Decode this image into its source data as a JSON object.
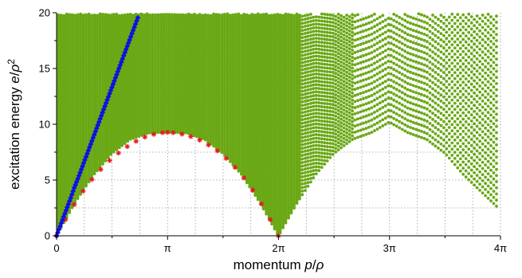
{
  "chart_data": {
    "type": "scatter",
    "title": "",
    "xlabel": {
      "prefix": "momentum ",
      "var": "p",
      "sep": "/",
      "den": "ρ"
    },
    "ylabel": {
      "prefix": "excitation energy ",
      "var": "e",
      "sep": "/",
      "den": "ρ",
      "sup": "2"
    },
    "xlim": [
      0,
      12.566
    ],
    "ylim": [
      0,
      20
    ],
    "grid": true,
    "legend": "none",
    "x_ticks": [
      {
        "value": 0,
        "label": "0"
      },
      {
        "value": 3.1416,
        "label": "π"
      },
      {
        "value": 6.2832,
        "label": "2π"
      },
      {
        "value": 9.4248,
        "label": "3π"
      },
      {
        "value": 12.566,
        "label": "4π"
      }
    ],
    "y_ticks": [
      {
        "value": 0,
        "label": "0"
      },
      {
        "value": 5,
        "label": "5"
      },
      {
        "value": 10,
        "label": "10"
      },
      {
        "value": 15,
        "label": "15"
      },
      {
        "value": 20,
        "label": "20"
      }
    ],
    "colors": {
      "continuum": "#6aa815",
      "lower_edge": "#e21d1d",
      "linear_branch": "#1010e0"
    },
    "series": [
      {
        "marker": "dot",
        "color": "#6aa815",
        "description_values": "dense band between the lower edge e = p(2π - p)/... and the plot top",
        "lower_bound_points": [
          [
            0.0,
            0.0
          ],
          [
            0.52,
            2.97
          ],
          [
            1.05,
            5.48
          ],
          [
            1.57,
            7.4
          ],
          [
            2.09,
            8.66
          ],
          [
            2.62,
            9.24
          ],
          [
            3.14,
            9.29
          ],
          [
            3.67,
            9.24
          ],
          [
            4.19,
            8.66
          ],
          [
            4.71,
            7.4
          ],
          [
            5.24,
            5.48
          ],
          [
            5.76,
            2.97
          ],
          [
            6.28,
            0.0
          ],
          [
            6.81,
            2.97
          ],
          [
            7.33,
            5.48
          ],
          [
            7.85,
            7.4
          ],
          [
            8.38,
            8.66
          ],
          [
            8.9,
            9.24
          ],
          [
            9.42,
            10.2
          ],
          [
            9.95,
            9.24
          ],
          [
            10.47,
            8.66
          ],
          [
            11.0,
            7.4
          ],
          [
            11.52,
            5.48
          ],
          [
            12.04,
            3.9
          ],
          [
            12.57,
            2.3
          ]
        ]
      },
      {
        "marker": "asterisk",
        "color": "#e21d1d",
        "points": [
          [
            0.0,
            0.0
          ],
          [
            0.25,
            1.45
          ],
          [
            0.5,
            2.8
          ],
          [
            0.75,
            4.0
          ],
          [
            1.0,
            5.05
          ],
          [
            1.25,
            5.95
          ],
          [
            1.5,
            6.75
          ],
          [
            1.75,
            7.42
          ],
          [
            2.0,
            8.0
          ],
          [
            2.25,
            8.48
          ],
          [
            2.5,
            8.85
          ],
          [
            2.75,
            9.1
          ],
          [
            3.0,
            9.25
          ],
          [
            3.14,
            9.28
          ],
          [
            3.3,
            9.25
          ],
          [
            3.55,
            9.12
          ],
          [
            3.8,
            8.9
          ],
          [
            4.05,
            8.58
          ],
          [
            4.3,
            8.15
          ],
          [
            4.55,
            7.62
          ],
          [
            4.8,
            6.95
          ],
          [
            5.05,
            6.15
          ],
          [
            5.3,
            5.2
          ],
          [
            5.55,
            4.1
          ],
          [
            5.8,
            2.85
          ],
          [
            6.05,
            1.45
          ],
          [
            6.28,
            0.0
          ]
        ]
      },
      {
        "marker": "diamond",
        "color": "#1010e0",
        "points": [
          [
            0.0,
            0.0
          ],
          [
            0.1,
            0.85
          ],
          [
            0.2,
            1.7
          ],
          [
            0.3,
            2.55
          ],
          [
            0.4,
            3.4
          ],
          [
            0.5,
            4.3
          ],
          [
            0.6,
            5.1
          ],
          [
            0.7,
            5.95
          ],
          [
            0.8,
            6.8
          ],
          [
            0.9,
            7.65
          ],
          [
            1.0,
            8.5
          ],
          [
            1.1,
            9.35
          ],
          [
            1.2,
            10.2
          ],
          [
            1.3,
            11.05
          ],
          [
            1.4,
            11.9
          ],
          [
            1.5,
            12.75
          ],
          [
            1.6,
            13.6
          ],
          [
            1.7,
            14.45
          ],
          [
            1.8,
            15.3
          ],
          [
            1.9,
            16.15
          ],
          [
            2.0,
            17.0
          ],
          [
            2.1,
            17.85
          ],
          [
            2.2,
            18.7
          ],
          [
            2.3,
            19.55
          ]
        ]
      }
    ]
  }
}
